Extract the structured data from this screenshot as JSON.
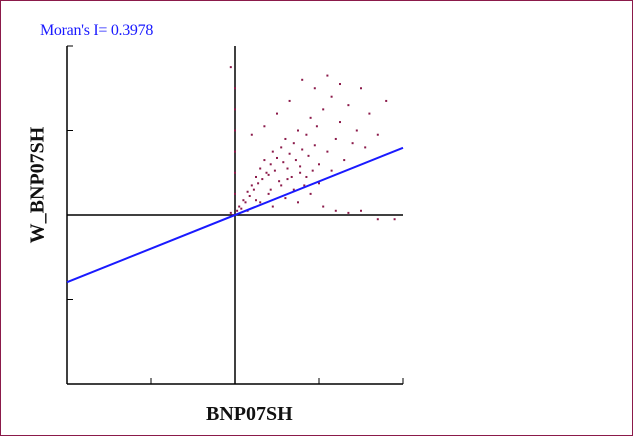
{
  "chart_data": {
    "type": "scatter",
    "title": "Moran's I= 0.3978",
    "xlabel": "BNP07SH",
    "ylabel": "W_BNP07SH",
    "xlim": [
      -4,
      4
    ],
    "ylim": [
      -4,
      4
    ],
    "grid": false,
    "regression_line": {
      "slope": 0.3978,
      "intercept": 0
    },
    "colors": {
      "points": "#8b1a4a",
      "line": "#1a1aff",
      "axes": "#000000",
      "frame": "#8b1a4a"
    },
    "series": [
      {
        "points": [
          [
            0.05,
            0.1
          ],
          [
            0.1,
            0.2
          ],
          [
            0.15,
            0.15
          ],
          [
            0.2,
            0.35
          ],
          [
            0.25,
            0.3
          ],
          [
            0.3,
            0.55
          ],
          [
            0.35,
            0.45
          ],
          [
            0.4,
            0.7
          ],
          [
            0.45,
            0.6
          ],
          [
            0.5,
            0.9
          ],
          [
            0.55,
            0.75
          ],
          [
            0.6,
            1.1
          ],
          [
            0.65,
            0.85
          ],
          [
            0.7,
            1.3
          ],
          [
            0.75,
            1.0
          ],
          [
            0.8,
            0.95
          ],
          [
            0.85,
            1.2
          ],
          [
            0.9,
            1.5
          ],
          [
            0.95,
            1.05
          ],
          [
            1.0,
            1.35
          ],
          [
            1.05,
            0.8
          ],
          [
            1.1,
            1.6
          ],
          [
            1.15,
            1.25
          ],
          [
            1.2,
            1.8
          ],
          [
            1.25,
            1.1
          ],
          [
            1.3,
            1.45
          ],
          [
            1.35,
            0.9
          ],
          [
            1.4,
            1.7
          ],
          [
            1.45,
            1.3
          ],
          [
            1.5,
            2.0
          ],
          [
            1.55,
            1.15
          ],
          [
            1.6,
            1.55
          ],
          [
            1.65,
            0.7
          ],
          [
            1.7,
            1.9
          ],
          [
            1.75,
            1.4
          ],
          [
            1.8,
            2.3
          ],
          [
            1.85,
            1.05
          ],
          [
            1.9,
            1.65
          ],
          [
            1.95,
            2.1
          ],
          [
            2.0,
            1.2
          ],
          [
            2.1,
            2.5
          ],
          [
            2.2,
            1.5
          ],
          [
            2.3,
            2.8
          ],
          [
            2.4,
            1.8
          ],
          [
            2.5,
            2.2
          ],
          [
            2.6,
            1.3
          ],
          [
            2.7,
            2.6
          ],
          [
            2.8,
            1.7
          ],
          [
            2.9,
            2.0
          ],
          [
            3.0,
            3.0
          ],
          [
            3.1,
            1.6
          ],
          [
            3.2,
            2.4
          ],
          [
            3.4,
            1.9
          ],
          [
            3.6,
            2.7
          ],
          [
            0.3,
            0.1
          ],
          [
            0.6,
            0.3
          ],
          [
            0.9,
            0.2
          ],
          [
            1.2,
            0.4
          ],
          [
            1.5,
            0.3
          ],
          [
            1.8,
            0.5
          ],
          [
            2.1,
            0.2
          ],
          [
            2.4,
            0.1
          ],
          [
            2.7,
            0.05
          ],
          [
            3.0,
            0.1
          ],
          [
            3.4,
            -0.1
          ],
          [
            3.8,
            -0.1
          ],
          [
            0.4,
            1.9
          ],
          [
            0.7,
            2.1
          ],
          [
            1.0,
            2.4
          ],
          [
            1.3,
            2.7
          ],
          [
            1.6,
            3.2
          ],
          [
            1.9,
            3.0
          ],
          [
            2.2,
            3.3
          ],
          [
            2.5,
            3.1
          ],
          [
            0.8,
            0.5
          ],
          [
            1.1,
            0.7
          ],
          [
            1.4,
            0.6
          ],
          [
            1.7,
            0.9
          ],
          [
            2.0,
            0.75
          ],
          [
            2.3,
            1.05
          ],
          [
            0.5,
            0.35
          ],
          [
            0.85,
            0.6
          ],
          [
            1.25,
            0.85
          ],
          [
            1.55,
            1.0
          ],
          [
            -0.05,
            0.0
          ],
          [
            -0.1,
            0.05
          ],
          [
            0.0,
            0.5
          ],
          [
            0.0,
            1.0
          ],
          [
            0.0,
            1.5
          ],
          [
            0.0,
            2.0
          ],
          [
            0.0,
            2.5
          ],
          [
            0.0,
            3.0
          ],
          [
            -0.1,
            3.5
          ]
        ]
      }
    ]
  }
}
